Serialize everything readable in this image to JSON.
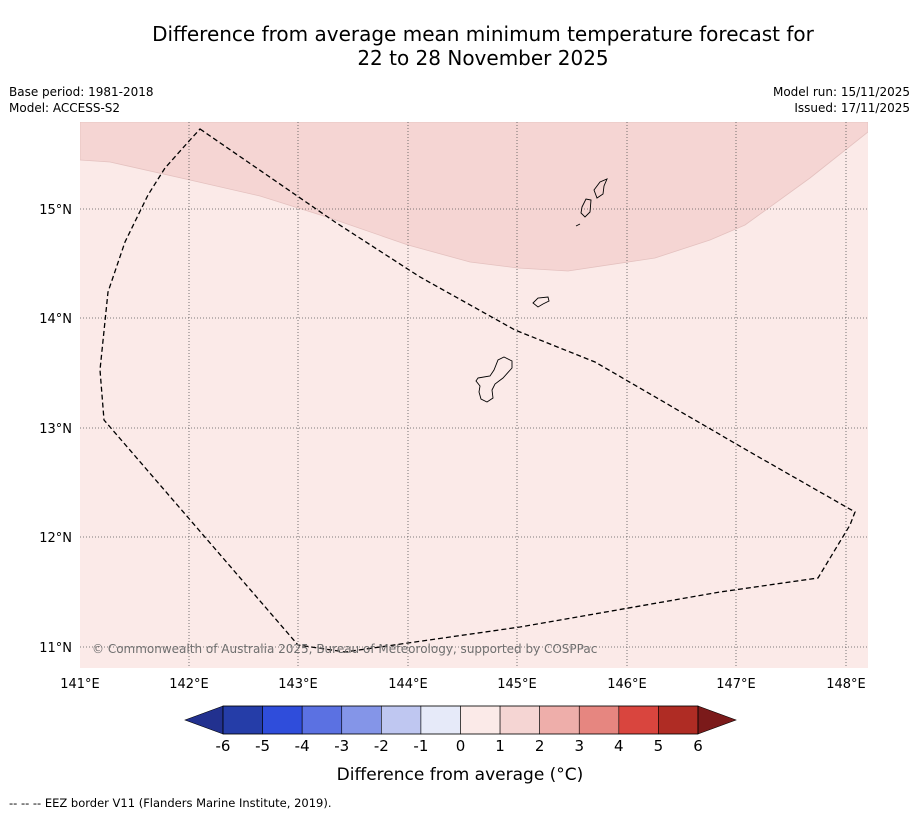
{
  "title": {
    "line1": "Difference from average mean minimum temperature forecast for",
    "line2": "22 to 28 November 2025"
  },
  "meta": {
    "base_period": "Base period: 1981-2018",
    "model": "Model: ACCESS-S2",
    "model_run": "Model run: 15/11/2025",
    "issued": "Issued: 17/11/2025"
  },
  "map": {
    "lon_labels": [
      "141°E",
      "142°E",
      "143°E",
      "144°E",
      "145°E",
      "146°E",
      "147°E",
      "148°E"
    ],
    "lat_labels": [
      "15°N",
      "14°N",
      "13°N",
      "12°N",
      "11°N"
    ],
    "copyright": "© Commonwealth of Australia 2025, Bureau of Meteorology, supported by COSPPac",
    "colors": {
      "zone_0_to_1": "#fbeae8",
      "zone_1_to_2": "#f5d5d3"
    }
  },
  "colorbar": {
    "ticks": [
      "-6",
      "-5",
      "-4",
      "-3",
      "-2",
      "-1",
      "0",
      "1",
      "2",
      "3",
      "4",
      "5",
      "6"
    ],
    "colors": [
      "#22318f",
      "#253da8",
      "#2f4ddb",
      "#5b71e2",
      "#8495e8",
      "#bfc7f1",
      "#e6eaf9",
      "#fbeae8",
      "#f5d5d3",
      "#eeaeaa",
      "#e68680",
      "#d9453e",
      "#af2c24",
      "#7b1a1a"
    ],
    "label": "Difference from average (°C)"
  },
  "footnote": "--  --  -- EEZ border V11 (Flanders Marine Institute, 2019)."
}
